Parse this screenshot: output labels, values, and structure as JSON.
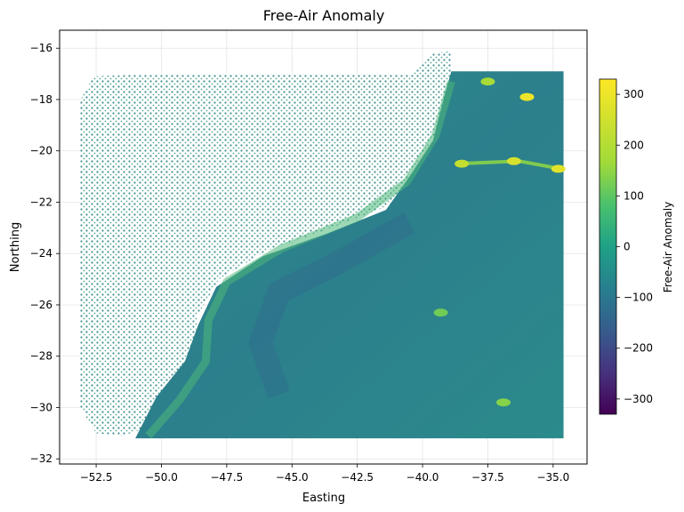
{
  "chart_data": {
    "type": "scatter",
    "title": "Free-Air Anomaly",
    "xlabel": "Easting",
    "ylabel": "Northing",
    "xlim": [
      -53.9,
      -33.7
    ],
    "ylim": [
      -32.2,
      -15.3
    ],
    "xticks": [
      -52.5,
      -50.0,
      -47.5,
      -45.0,
      -42.5,
      -40.0,
      -37.5,
      -35.0
    ],
    "xtick_labels": [
      "−52.5",
      "−50.0",
      "−47.5",
      "−45.0",
      "−42.5",
      "−40.0",
      "−37.5",
      "−35.0"
    ],
    "yticks": [
      -16,
      -18,
      -20,
      -22,
      -24,
      -26,
      -28,
      -30,
      -32
    ],
    "ytick_labels": [
      "−16",
      "−18",
      "−20",
      "−22",
      "−24",
      "−26",
      "−28",
      "−30",
      "−32"
    ],
    "grid": true,
    "colorbar": {
      "label": "Free-Air Anomaly",
      "range": [
        -330,
        330
      ],
      "ticks": [
        300,
        200,
        100,
        0,
        -100,
        -200,
        -300
      ],
      "tick_labels": [
        "300",
        "200",
        "100",
        "0",
        "−100",
        "−200",
        "−300"
      ],
      "colormap": "viridis"
    },
    "regions": {
      "land_extent": {
        "easting": [
          -53.1,
          -39.5
        ],
        "northing": [
          -31.2,
          -17.0
        ]
      },
      "ocean_grid_extent": {
        "easting": [
          -51.0,
          -34.6
        ],
        "northing": [
          -31.2,
          -16.9
        ]
      }
    },
    "highlights": [
      {
        "easting": -36.0,
        "northing": -17.9,
        "value": 300
      },
      {
        "easting": -34.8,
        "northing": -20.7,
        "value": 280
      },
      {
        "easting": -36.5,
        "northing": -20.4,
        "value": 260
      },
      {
        "easting": -38.5,
        "northing": -20.5,
        "value": 230
      },
      {
        "easting": -37.5,
        "northing": -17.3,
        "value": 180
      },
      {
        "easting": -36.9,
        "northing": -29.8,
        "value": 140
      },
      {
        "easting": -39.3,
        "northing": -26.3,
        "value": 120
      }
    ]
  }
}
